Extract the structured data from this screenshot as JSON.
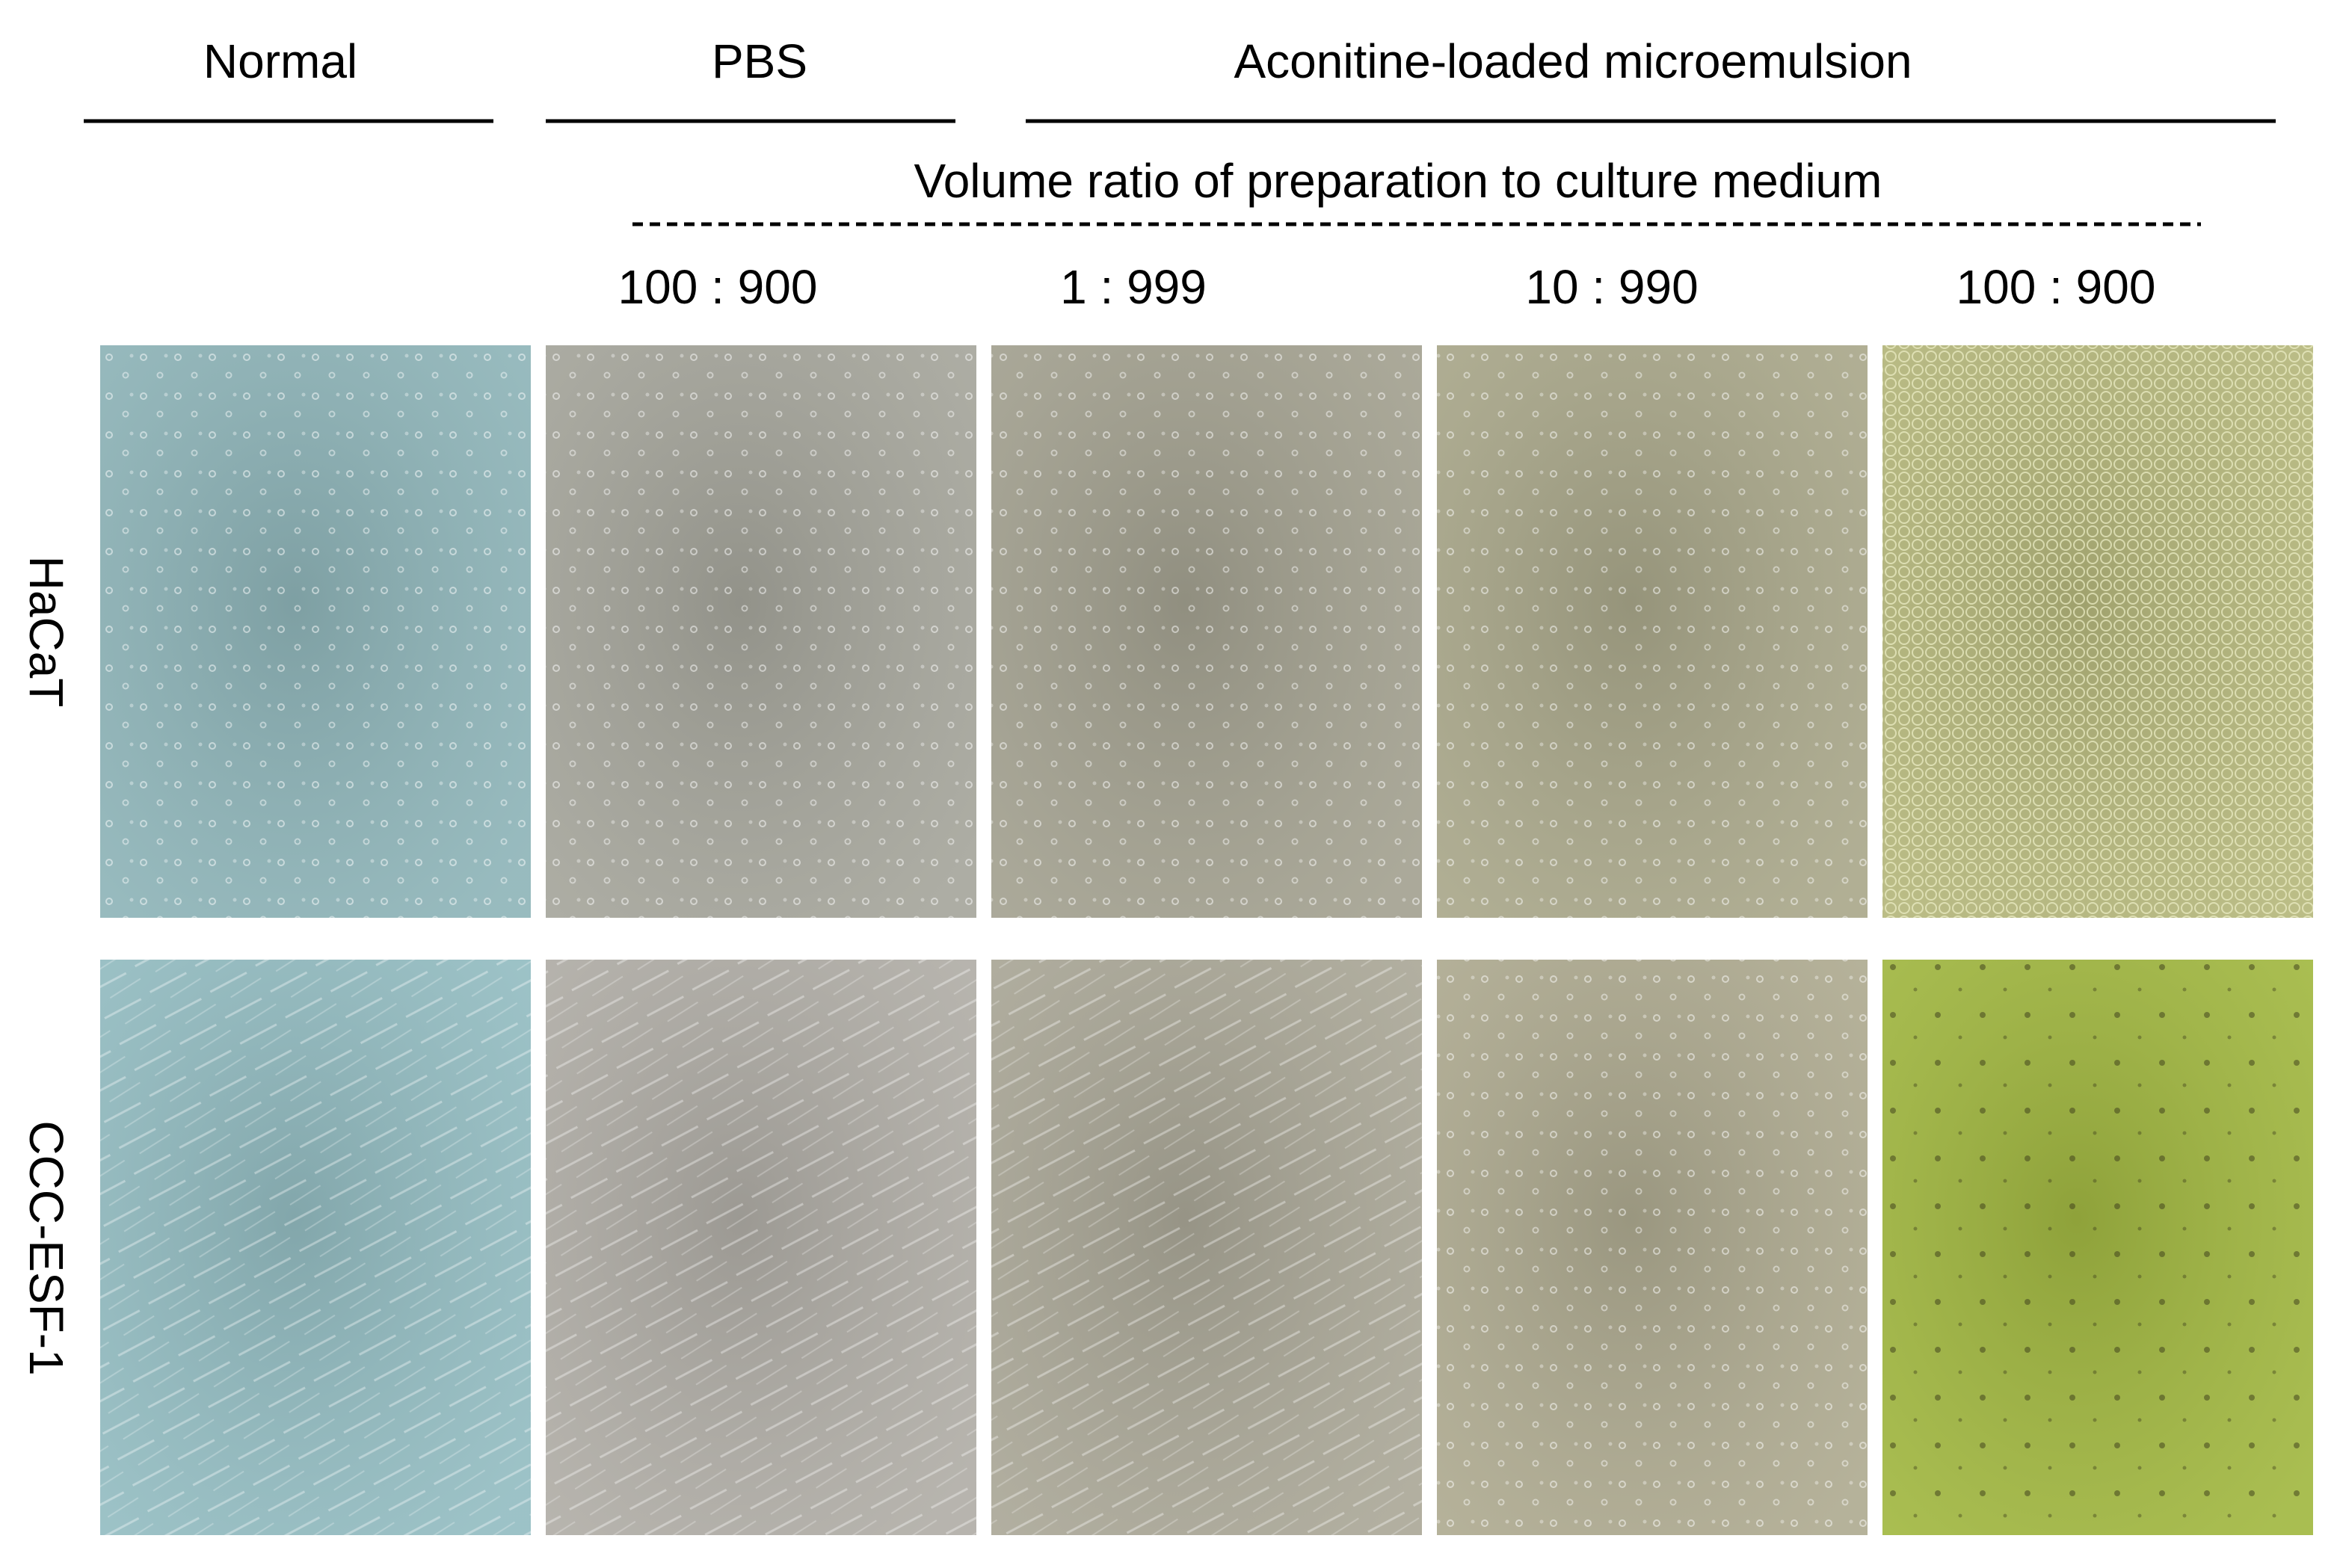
{
  "header": {
    "groups": [
      "Normal",
      "PBS",
      "Aconitine-loaded microemulsion"
    ],
    "subtitle": "Volume ratio of preparation to culture medium",
    "ratios": [
      "100 : 900",
      "1 : 999",
      "10 : 990",
      "100 : 900"
    ]
  },
  "rows": [
    "HaCaT",
    "CCC-ESF-1"
  ]
}
